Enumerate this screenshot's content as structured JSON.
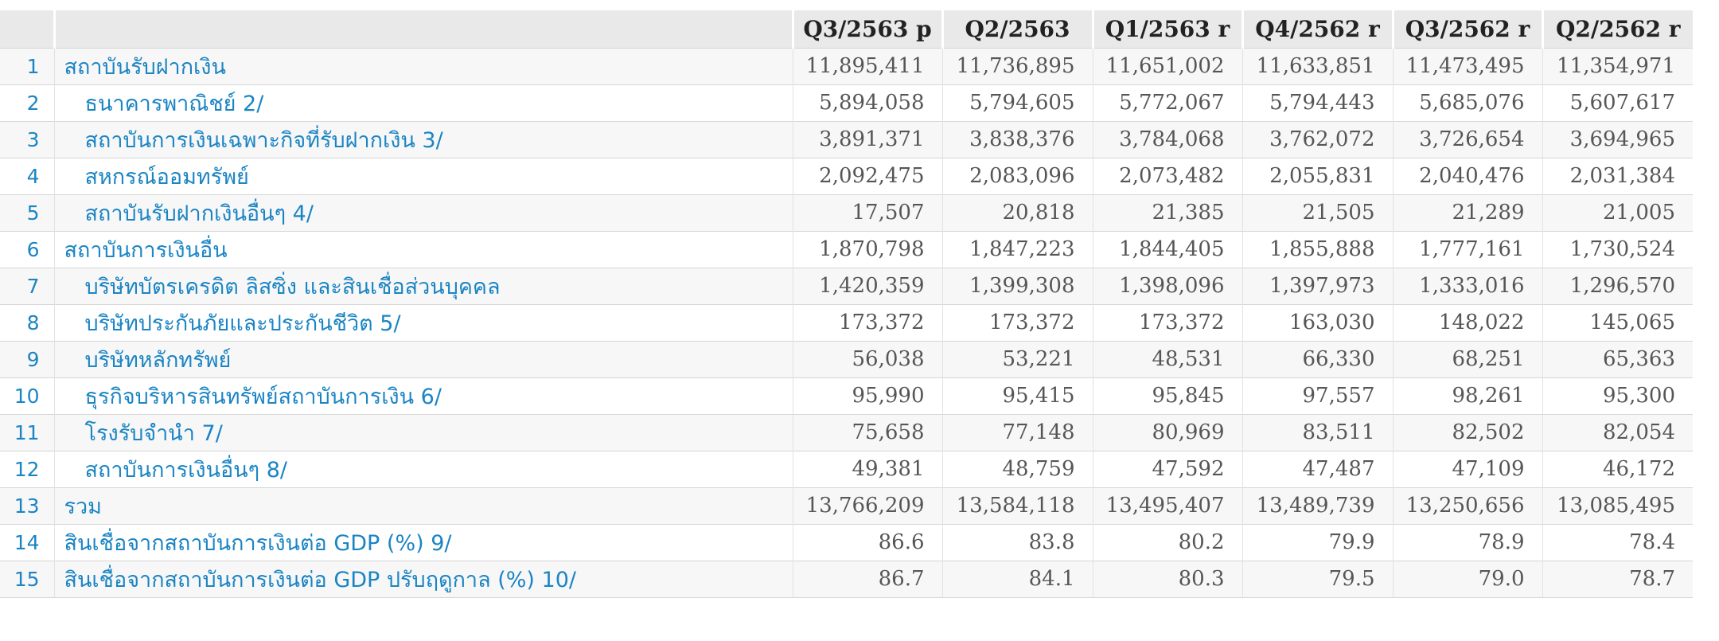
{
  "table": {
    "columns": [
      "Q3/2563 p",
      "Q2/2563",
      "Q1/2563 r",
      "Q4/2562 r",
      "Q3/2562 r",
      "Q2/2562 r"
    ],
    "rows": [
      {
        "no": "1",
        "label": "สถาบันรับฝากเงิน",
        "indent": false,
        "values": [
          "11,895,411",
          "11,736,895",
          "11,651,002",
          "11,633,851",
          "11,473,495",
          "11,354,971"
        ]
      },
      {
        "no": "2",
        "label": "ธนาคารพาณิชย์ 2/",
        "indent": true,
        "values": [
          "5,894,058",
          "5,794,605",
          "5,772,067",
          "5,794,443",
          "5,685,076",
          "5,607,617"
        ]
      },
      {
        "no": "3",
        "label": "สถาบันการเงินเฉพาะกิจที่รับฝากเงิน 3/",
        "indent": true,
        "values": [
          "3,891,371",
          "3,838,376",
          "3,784,068",
          "3,762,072",
          "3,726,654",
          "3,694,965"
        ]
      },
      {
        "no": "4",
        "label": "สหกรณ์ออมทรัพย์",
        "indent": true,
        "values": [
          "2,092,475",
          "2,083,096",
          "2,073,482",
          "2,055,831",
          "2,040,476",
          "2,031,384"
        ]
      },
      {
        "no": "5",
        "label": "สถาบันรับฝากเงินอื่นๆ 4/",
        "indent": true,
        "values": [
          "17,507",
          "20,818",
          "21,385",
          "21,505",
          "21,289",
          "21,005"
        ]
      },
      {
        "no": "6",
        "label": "สถาบันการเงินอื่น",
        "indent": false,
        "values": [
          "1,870,798",
          "1,847,223",
          "1,844,405",
          "1,855,888",
          "1,777,161",
          "1,730,524"
        ]
      },
      {
        "no": "7",
        "label": "บริษัทบัตรเครดิต ลิสซิ่ง และสินเชื่อส่วนบุคคล",
        "indent": true,
        "values": [
          "1,420,359",
          "1,399,308",
          "1,398,096",
          "1,397,973",
          "1,333,016",
          "1,296,570"
        ]
      },
      {
        "no": "8",
        "label": "บริษัทประกันภัยและประกันชีวิต 5/",
        "indent": true,
        "values": [
          "173,372",
          "173,372",
          "173,372",
          "163,030",
          "148,022",
          "145,065"
        ]
      },
      {
        "no": "9",
        "label": "บริษัทหลักทรัพย์",
        "indent": true,
        "values": [
          "56,038",
          "53,221",
          "48,531",
          "66,330",
          "68,251",
          "65,363"
        ]
      },
      {
        "no": "10",
        "label": "ธุรกิจบริหารสินทรัพย์สถาบันการเงิน 6/",
        "indent": true,
        "values": [
          "95,990",
          "95,415",
          "95,845",
          "97,557",
          "98,261",
          "95,300"
        ]
      },
      {
        "no": "11",
        "label": "โรงรับจำนำ 7/",
        "indent": true,
        "values": [
          "75,658",
          "77,148",
          "80,969",
          "83,511",
          "82,502",
          "82,054"
        ]
      },
      {
        "no": "12",
        "label": "สถาบันการเงินอื่นๆ 8/",
        "indent": true,
        "values": [
          "49,381",
          "48,759",
          "47,592",
          "47,487",
          "47,109",
          "46,172"
        ]
      },
      {
        "no": "13",
        "label": "รวม",
        "indent": false,
        "values": [
          "13,766,209",
          "13,584,118",
          "13,495,407",
          "13,489,739",
          "13,250,656",
          "13,085,495"
        ]
      },
      {
        "no": "14",
        "label": "สินเชื่อจากสถาบันการเงินต่อ GDP (%) 9/",
        "indent": false,
        "values": [
          "86.6",
          "83.8",
          "80.2",
          "79.9",
          "78.9",
          "78.4"
        ]
      },
      {
        "no": "15",
        "label": "สินเชื่อจากสถาบันการเงินต่อ GDP ปรับฤดูกาล (%) 10/",
        "indent": false,
        "values": [
          "86.7",
          "84.1",
          "80.3",
          "79.5",
          "79.0",
          "78.7"
        ]
      }
    ]
  },
  "colors": {
    "header_bg": "#e9e9e9",
    "header_text": "#222222",
    "row_stripe": "#f7f7f7",
    "grid_line_horizontal": "#d6d6d6",
    "grid_line_vertical": "#e2e2e2",
    "label_link_blue": "#1b85c4",
    "value_text_gray": "#565656"
  }
}
